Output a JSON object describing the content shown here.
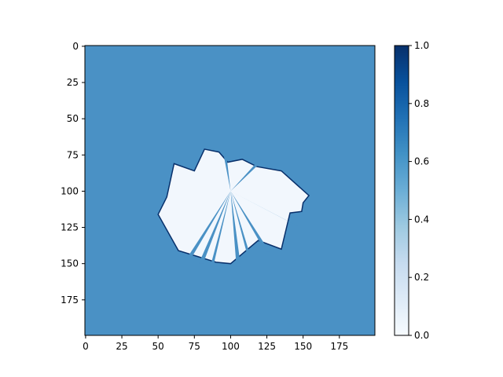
{
  "chart_data": {
    "type": "heatmap",
    "title": "",
    "xlabel": "",
    "ylabel": "",
    "colormap": "Blues",
    "value_range": [
      0.0,
      1.0
    ],
    "grid_shape": [
      200,
      200
    ],
    "x_range": [
      0,
      199
    ],
    "y_range": [
      0,
      199
    ],
    "y_axis_inverted": true,
    "background_value": 0.6,
    "free_space_value": 0.0,
    "obstacle_value": 1.0,
    "center": [
      100,
      100
    ],
    "x_ticks": [
      0,
      25,
      50,
      75,
      100,
      125,
      150,
      175
    ],
    "x_tick_labels": [
      "0",
      "25",
      "50",
      "75",
      "100",
      "125",
      "150",
      "175"
    ],
    "y_ticks": [
      0,
      25,
      50,
      75,
      100,
      125,
      150,
      175
    ],
    "y_tick_labels": [
      "0",
      "25",
      "50",
      "75",
      "100",
      "125",
      "150",
      "175"
    ],
    "colorbar_ticks": [
      0.0,
      0.2,
      0.4,
      0.6,
      0.8,
      1.0
    ],
    "colorbar_tick_labels": [
      "0.0",
      "0.2",
      "0.4",
      "0.6",
      "0.8",
      "1.0"
    ],
    "free_region_outline": [
      [
        61,
        81
      ],
      [
        75,
        86
      ],
      [
        82,
        71
      ],
      [
        92,
        73
      ],
      [
        98,
        80
      ],
      [
        108,
        78
      ],
      [
        118,
        83
      ],
      [
        135,
        86
      ],
      [
        154,
        103
      ],
      [
        150,
        108
      ],
      [
        149,
        114
      ],
      [
        141,
        115
      ],
      [
        135,
        140
      ],
      [
        119,
        134
      ],
      [
        100,
        150
      ],
      [
        90,
        149
      ],
      [
        64,
        141
      ],
      [
        50,
        116
      ],
      [
        56,
        104
      ]
    ],
    "colors": {
      "background": "#4a91c5",
      "free": "#f2f7fd",
      "obstacle": "#08306b"
    }
  }
}
